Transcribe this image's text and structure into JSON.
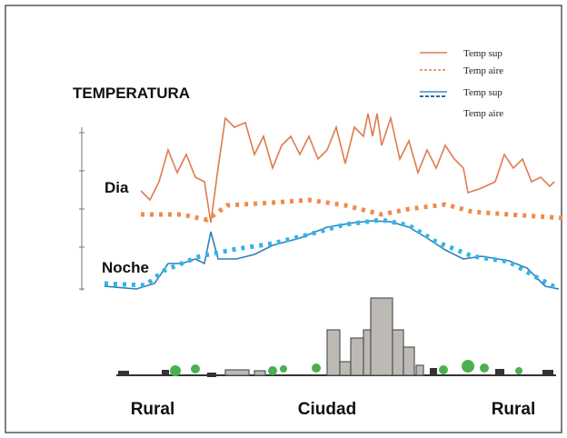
{
  "title": "TEMPERATURA",
  "rows": [
    {
      "label": "Dia"
    },
    {
      "label": "Noche"
    }
  ],
  "legend": [
    {
      "label": "Temp sup"
    },
    {
      "label": "Temp aire"
    },
    {
      "label": "Temp sup"
    },
    {
      "label": "Temp aire"
    }
  ],
  "zones": [
    "Rural",
    "Ciudad",
    "Rural"
  ]
}
